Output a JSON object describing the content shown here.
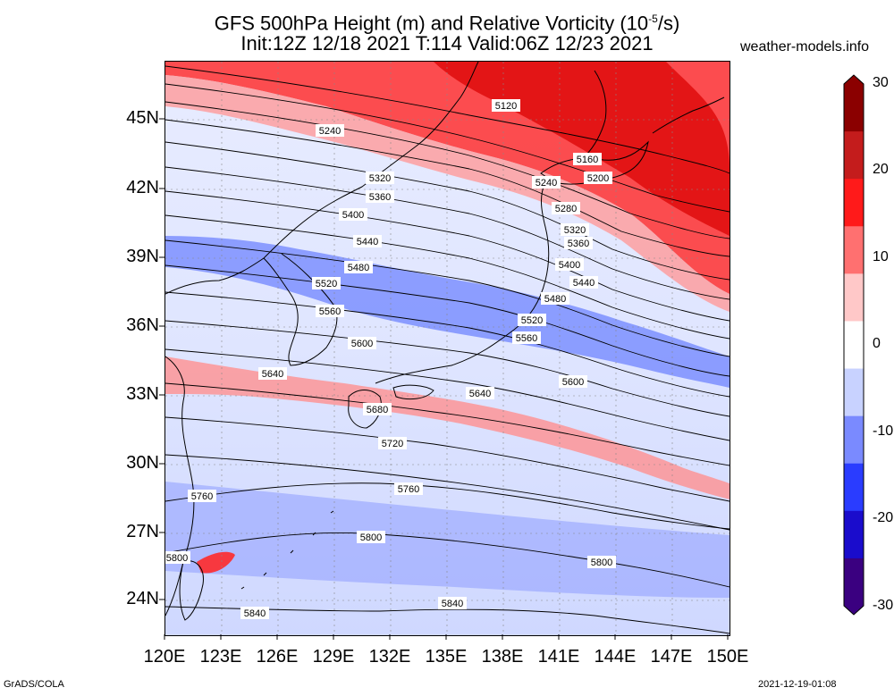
{
  "title": {
    "line1_main": "GFS 500hPa Height (m) and Relative Vorticity (10",
    "line1_sup": "-5",
    "line1_end": "/s)",
    "line2": "Init:12Z 12/18 2021 T:114 Valid:06Z 12/23 2021"
  },
  "site": "weather-models.info",
  "footer": {
    "left": "GrADS/COLA",
    "right": "2021-12-19-01:08"
  },
  "axes": {
    "lat_labels": [
      "45N",
      "42N",
      "39N",
      "36N",
      "33N",
      "30N",
      "27N",
      "24N"
    ],
    "lon_labels": [
      "120E",
      "123E",
      "126E",
      "129E",
      "132E",
      "135E",
      "138E",
      "141E",
      "144E",
      "147E",
      "150E"
    ]
  },
  "colorbar": {
    "labels": [
      "30",
      "20",
      "10",
      "0",
      "-10",
      "-20",
      "-30"
    ],
    "colors": [
      "#8b0000",
      "#c41c1c",
      "#ff1a1a",
      "#ff7070",
      "#ffc8c8",
      "#ffffff",
      "#c8d2ff",
      "#7a8aff",
      "#2a3cff",
      "#1a0ccc",
      "#3a0080"
    ]
  },
  "contours": [
    {
      "value": "5120"
    },
    {
      "value": "5160"
    },
    {
      "value": "5200"
    },
    {
      "value": "5240"
    },
    {
      "value": "5240"
    },
    {
      "value": "5280"
    },
    {
      "value": "5320"
    },
    {
      "value": "5320"
    },
    {
      "value": "5360"
    },
    {
      "value": "5360"
    },
    {
      "value": "5400"
    },
    {
      "value": "5400"
    },
    {
      "value": "5440"
    },
    {
      "value": "5440"
    },
    {
      "value": "5480"
    },
    {
      "value": "5480"
    },
    {
      "value": "5520"
    },
    {
      "value": "5520"
    },
    {
      "value": "5560"
    },
    {
      "value": "5560"
    },
    {
      "value": "5600"
    },
    {
      "value": "5600"
    },
    {
      "value": "5640"
    },
    {
      "value": "5640"
    },
    {
      "value": "5680"
    },
    {
      "value": "5720"
    },
    {
      "value": "5760"
    },
    {
      "value": "5760"
    },
    {
      "value": "5800"
    },
    {
      "value": "5800"
    },
    {
      "value": "5800"
    },
    {
      "value": "5840"
    },
    {
      "value": "5840"
    }
  ]
}
